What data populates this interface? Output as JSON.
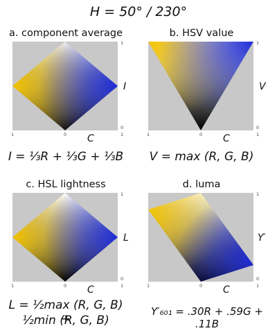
{
  "title": "H = 50° / 230°",
  "colors": {
    "background": "#c8c8c8",
    "yellow": "#f2c200",
    "blue": "#1e2bd6",
    "white": "#ffffff",
    "black": "#000000"
  },
  "axis": {
    "x_label": "C",
    "tick_zero": "0",
    "tick_one": "1"
  },
  "panels": [
    {
      "title": "a. component average",
      "y_label": "I",
      "formula": "I = ⅓R + ⅓G + ⅓B"
    },
    {
      "title": "b. HSV value",
      "y_label": "V",
      "formula": "V = max (R, G, B)"
    },
    {
      "title": "c. HSL lightness",
      "y_label": "L",
      "formula_line1": "L = ½max (R, G, B) +",
      "formula_line2": "½min (R, G, B)"
    },
    {
      "title": "d. luma",
      "y_label": "Y′",
      "formula": "Y′₆₀₁ = .30R + .59G + .11B"
    }
  ]
}
